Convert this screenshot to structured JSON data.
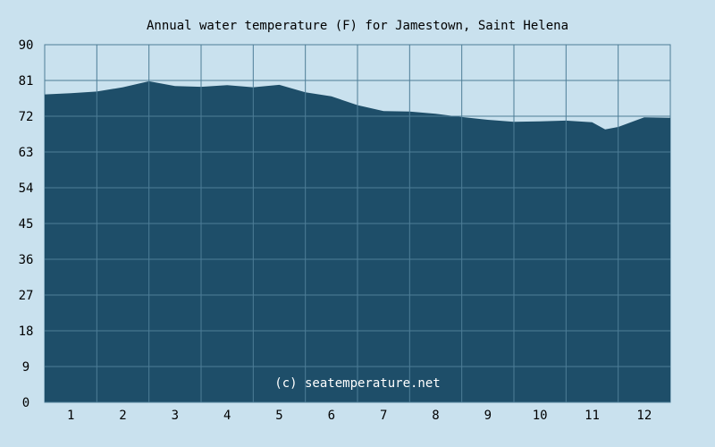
{
  "chart_data": {
    "type": "area",
    "title": "Annual water temperature (F) for Jamestown, Saint Helena",
    "credit": "(c) seatemperature.net",
    "xlabel": "",
    "ylabel": "",
    "ylim": [
      0,
      90
    ],
    "y_ticks": [
      "90",
      "81",
      "72",
      "63",
      "54",
      "45",
      "36",
      "27",
      "18",
      "9",
      "0"
    ],
    "x_ticks": [
      "1",
      "2",
      "3",
      "4",
      "5",
      "6",
      "7",
      "8",
      "9",
      "10",
      "11",
      "12"
    ],
    "grid": true,
    "colors": {
      "background": "#c9e1ee",
      "fill": "#1e4e69",
      "grid": "#4d7d97",
      "axis": "#4d7d97"
    },
    "series": [
      {
        "x": [
          0.0,
          0.5,
          1.0,
          1.5,
          2.0,
          2.5,
          3.0,
          3.5,
          4.0,
          4.5,
          5.0,
          5.5,
          6.0,
          6.5,
          7.0,
          7.5,
          8.0,
          8.5,
          9.0,
          9.5,
          10.0,
          10.5,
          10.75,
          11.0,
          11.5,
          12.0
        ],
        "values": [
          77.5,
          77.8,
          78.2,
          79.3,
          80.8,
          79.6,
          79.4,
          79.8,
          79.3,
          79.9,
          78.0,
          77.0,
          74.8,
          73.3,
          73.2,
          72.6,
          71.8,
          71.1,
          70.6,
          70.7,
          70.9,
          70.5,
          68.7,
          69.3,
          71.7,
          71.6
        ]
      }
    ]
  }
}
